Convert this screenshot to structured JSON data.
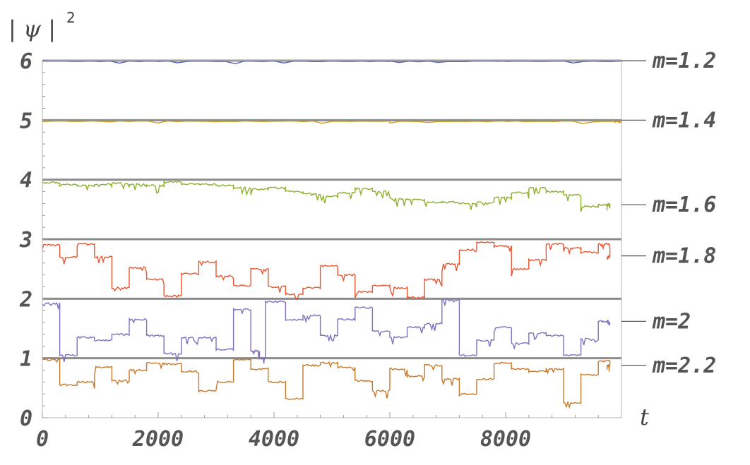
{
  "chart_data": {
    "type": "line",
    "title": "",
    "ylabel_main": "| ψ |",
    "ylabel_sup": "2",
    "xlabel": "t",
    "xlim": [
      0,
      10000
    ],
    "ylim": [
      0,
      6
    ],
    "x_ticks": [
      "0",
      "2000",
      "4000",
      "6000",
      "8000"
    ],
    "x_tick_values": [
      0,
      2000,
      4000,
      6000,
      8000
    ],
    "y_ticks": [
      "0",
      "1",
      "2",
      "3",
      "4",
      "5",
      "6"
    ],
    "y_tick_values": [
      0,
      1,
      2,
      3,
      4,
      5,
      6
    ],
    "reference_lines": [
      1,
      2,
      3,
      4,
      5,
      6
    ],
    "colors": {
      "reference": "#8c8c8c",
      "frame": "#b3b3b3",
      "m12": "#5e5fb3",
      "m14": "#d4a020",
      "m16": "#8cb030",
      "m18": "#e8552f",
      "m20": "#7f6fbf",
      "m22": "#c8782a"
    },
    "series": [
      {
        "name": "m=1.2",
        "base": 5,
        "color_key": "m12",
        "label_y": 6.0,
        "x": [
          0,
          2000,
          4000,
          6000,
          8000,
          10000
        ],
        "values": [
          0.99,
          0.99,
          0.99,
          0.99,
          0.99,
          0.99
        ]
      },
      {
        "name": "m=1.4",
        "base": 4,
        "color_key": "m14",
        "label_y": 5.0,
        "x": [
          0,
          2000,
          4000,
          6000,
          8000,
          10000
        ],
        "values": [
          0.98,
          0.98,
          0.98,
          0.98,
          0.98,
          0.98
        ]
      },
      {
        "name": "m=1.6",
        "base": 3,
        "color_key": "m16",
        "label_y": 3.58,
        "x": [
          0,
          300,
          600,
          900,
          1200,
          1500,
          1800,
          2100,
          2400,
          2700,
          3000,
          3300,
          3600,
          3900,
          4200,
          4500,
          4800,
          5100,
          5400,
          5700,
          6000,
          6300,
          6600,
          6900,
          7200,
          7500,
          7800,
          8100,
          8400,
          8700,
          9000,
          9300,
          9600,
          9800
        ],
        "values": [
          0.95,
          0.92,
          0.9,
          0.92,
          0.94,
          0.92,
          0.9,
          0.97,
          0.93,
          0.92,
          0.9,
          0.86,
          0.84,
          0.86,
          0.8,
          0.76,
          0.72,
          0.78,
          0.85,
          0.8,
          0.68,
          0.66,
          0.62,
          0.62,
          0.6,
          0.62,
          0.7,
          0.78,
          0.86,
          0.8,
          0.74,
          0.55,
          0.58,
          0.58
        ]
      },
      {
        "name": "m=1.8",
        "base": 2,
        "color_key": "m18",
        "label_y": 2.72,
        "x": [
          0,
          300,
          600,
          900,
          1200,
          1500,
          1800,
          2100,
          2400,
          2700,
          3000,
          3300,
          3600,
          3900,
          4200,
          4500,
          4800,
          5100,
          5400,
          5700,
          6000,
          6300,
          6600,
          6900,
          7200,
          7500,
          7800,
          8100,
          8400,
          8700,
          9000,
          9300,
          9600,
          9800
        ],
        "values": [
          0.9,
          0.7,
          0.92,
          0.7,
          0.18,
          0.52,
          0.32,
          0.05,
          0.42,
          0.62,
          0.38,
          0.22,
          0.5,
          0.2,
          0.08,
          0.18,
          0.55,
          0.4,
          0.12,
          0.22,
          0.18,
          0.02,
          0.32,
          0.58,
          0.82,
          0.95,
          0.88,
          0.5,
          0.65,
          0.92,
          0.85,
          0.78,
          0.92,
          0.7
        ]
      },
      {
        "name": "m=2",
        "base": 1,
        "color_key": "m20",
        "label_y": 1.62,
        "x": [
          0,
          300,
          600,
          900,
          1200,
          1500,
          1800,
          2100,
          2400,
          2700,
          3000,
          3300,
          3600,
          3750,
          3850,
          4200,
          4500,
          4800,
          5100,
          5400,
          5700,
          6000,
          6300,
          6600,
          6900,
          7200,
          7500,
          7800,
          8100,
          8400,
          8700,
          9000,
          9300,
          9600,
          9800
        ],
        "values": [
          0.92,
          0.05,
          0.35,
          0.3,
          0.4,
          0.65,
          0.38,
          0.08,
          0.35,
          0.35,
          0.15,
          0.82,
          0.12,
          0.0,
          0.95,
          0.65,
          0.72,
          0.38,
          0.65,
          0.85,
          0.45,
          0.35,
          0.52,
          0.58,
          0.98,
          0.05,
          0.3,
          0.52,
          0.25,
          0.42,
          0.38,
          0.05,
          0.32,
          0.62,
          0.6
        ]
      },
      {
        "name": "m=2.2",
        "base": 0,
        "color_key": "m22",
        "label_y": 0.88,
        "x": [
          0,
          300,
          600,
          900,
          1200,
          1500,
          1800,
          2100,
          2400,
          2700,
          3000,
          3300,
          3600,
          3900,
          4200,
          4500,
          4800,
          5100,
          5400,
          5700,
          6000,
          6300,
          6600,
          6900,
          7200,
          7500,
          7800,
          8100,
          8400,
          8700,
          9000,
          9300,
          9600,
          9800
        ],
        "values": [
          0.98,
          0.55,
          0.6,
          0.85,
          0.62,
          0.8,
          0.92,
          0.9,
          0.78,
          0.45,
          0.6,
          0.98,
          0.82,
          0.6,
          0.32,
          0.88,
          0.92,
          0.85,
          0.62,
          0.45,
          0.82,
          0.7,
          0.88,
          0.65,
          0.4,
          0.65,
          0.92,
          0.82,
          0.78,
          0.82,
          0.25,
          0.72,
          0.95,
          0.88
        ]
      }
    ]
  }
}
